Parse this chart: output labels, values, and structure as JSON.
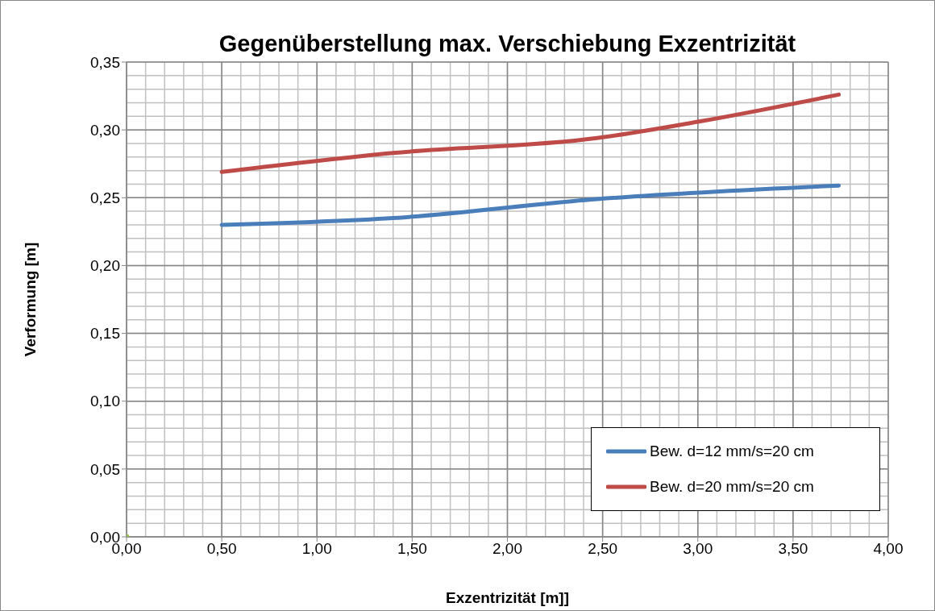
{
  "chart_data": {
    "type": "line",
    "title": "Gegenüberstellung max. Verschiebung Exzentrizität",
    "xlabel": "Exzentrizität [m]]",
    "ylabel": "Verformung [m]",
    "xlim": [
      0,
      4
    ],
    "xticks": [
      {
        "value": 0,
        "label": "0,00"
      },
      {
        "value": 0.5,
        "label": "0,50"
      },
      {
        "value": 1,
        "label": "1,00"
      },
      {
        "value": 1.5,
        "label": "1,50"
      },
      {
        "value": 2,
        "label": "2,00"
      },
      {
        "value": 2.5,
        "label": "2,50"
      },
      {
        "value": 3,
        "label": "3,00"
      },
      {
        "value": 3.5,
        "label": "3,50"
      },
      {
        "value": 4,
        "label": "4,00"
      }
    ],
    "ylim": [
      0,
      0.35
    ],
    "yticks": [
      {
        "value": 0,
        "label": "0,00"
      },
      {
        "value": 0.05,
        "label": "0,05"
      },
      {
        "value": 0.1,
        "label": "0,10"
      },
      {
        "value": 0.15,
        "label": "0,15"
      },
      {
        "value": 0.2,
        "label": "0,20"
      },
      {
        "value": 0.25,
        "label": "0,25"
      },
      {
        "value": 0.3,
        "label": "0,30"
      },
      {
        "value": 0.35,
        "label": "0,35"
      }
    ],
    "grid": true,
    "legend": "bottom right",
    "line_style": "solid",
    "series": [
      {
        "name": "Bew. d=12 mm/s=20 cm",
        "color": "#4a7ebb",
        "x": [
          0.5,
          1.4,
          2.47,
          3.74
        ],
        "values": [
          0.23,
          0.235,
          0.249,
          0.259
        ]
      },
      {
        "name": "Bew. d=20 mm/s=20 cm",
        "color": "#be4b48",
        "x": [
          0.5,
          1.4,
          2.47,
          3.0,
          3.74
        ],
        "values": [
          0.269,
          0.283,
          0.294,
          0.306,
          0.326
        ]
      },
      {
        "type": "scatter",
        "color": "#9bbb59",
        "x": [
          0
        ],
        "values": [
          0
        ]
      }
    ]
  }
}
